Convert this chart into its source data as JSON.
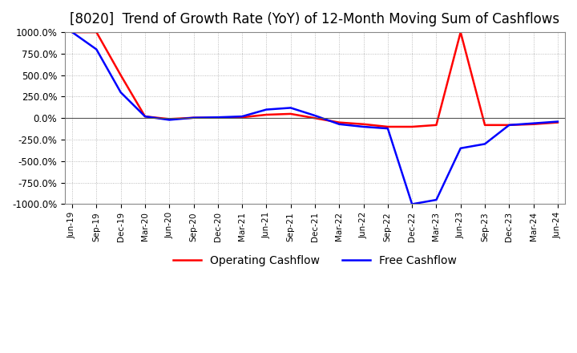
{
  "title": "[8020]  Trend of Growth Rate (YoY) of 12-Month Moving Sum of Cashflows",
  "title_fontsize": 12,
  "ylim": [
    -1000,
    1000
  ],
  "yticks": [
    1000.0,
    750.0,
    500.0,
    250.0,
    0.0,
    -250.0,
    -500.0,
    -750.0,
    -1000.0
  ],
  "ytick_labels": [
    "1000.0%",
    "750.0%",
    "500.0%",
    "250.0%",
    "0.0%",
    "-250.0%",
    "-500.0%",
    "-750.0%",
    "-1000.0%"
  ],
  "x_labels": [
    "Jun-19",
    "Sep-19",
    "Dec-19",
    "Mar-20",
    "Jun-20",
    "Sep-20",
    "Dec-20",
    "Mar-21",
    "Jun-21",
    "Sep-21",
    "Dec-21",
    "Mar-22",
    "Jun-22",
    "Sep-22",
    "Dec-22",
    "Mar-23",
    "Jun-23",
    "Sep-23",
    "Dec-23",
    "Mar-24",
    "Jun-24"
  ],
  "operating_cashflow": [
    1000,
    1000,
    500,
    20,
    -10,
    5,
    5,
    10,
    40,
    50,
    0,
    -50,
    -70,
    -100,
    -100,
    -80,
    1000,
    -80,
    -80,
    -70,
    -50
  ],
  "free_cashflow": [
    1000,
    800,
    300,
    20,
    -20,
    5,
    10,
    20,
    100,
    120,
    30,
    -70,
    -100,
    -120,
    -1000,
    -950,
    -350,
    -300,
    -80,
    -60,
    -40
  ],
  "operating_color": "#ff0000",
  "free_color": "#0000ff",
  "background_color": "#ffffff",
  "grid_color": "#aaaaaa",
  "legend_labels": [
    "Operating Cashflow",
    "Free Cashflow"
  ]
}
